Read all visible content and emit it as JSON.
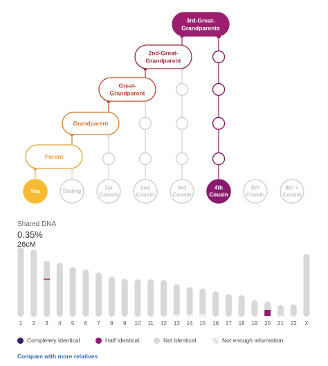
{
  "tree": {
    "ancestors": [
      {
        "label": [
          "Parent"
        ],
        "color": "#e8a33a"
      },
      {
        "label": [
          "Grandparent"
        ],
        "color": "#d97a2c"
      },
      {
        "label": [
          "Great-",
          "Grandparent"
        ],
        "color": "#c1462d"
      },
      {
        "label": [
          "2nd-Great-",
          "Grandparent"
        ],
        "color": "#9a2b3c"
      },
      {
        "label": [
          "3rd-Great-",
          "Grandparents"
        ],
        "color": "#9b1f6e"
      }
    ],
    "relatives": [
      {
        "label": [
          "You"
        ],
        "state": "you"
      },
      {
        "label": [
          "Sibling"
        ],
        "state": "inactive"
      },
      {
        "label": [
          "1st",
          "Cousin"
        ],
        "state": "inactive"
      },
      {
        "label": [
          "2nd",
          "Cousin"
        ],
        "state": "inactive"
      },
      {
        "label": [
          "3rd",
          "Cousin"
        ],
        "state": "inactive"
      },
      {
        "label": [
          "4th",
          "Cousin"
        ],
        "state": "selected"
      },
      {
        "label": [
          "5th",
          "Cousin"
        ],
        "state": "inactive"
      },
      {
        "label": [
          "6th +",
          "Cousin"
        ],
        "state": "inactive"
      }
    ],
    "colors": {
      "you": "#f6bb33",
      "selected": "#8a1a6d",
      "inactive": "#cfcfcf",
      "inactive_text": "#c2c2c2"
    }
  },
  "shared_dna": {
    "label": "Shared DNA",
    "percent": "0.35%",
    "cm": "26cM"
  },
  "chromosomes": {
    "labels": [
      "1",
      "2",
      "3",
      "4",
      "5",
      "6",
      "7",
      "8",
      "9",
      "10",
      "11",
      "12",
      "13",
      "14",
      "15",
      "16",
      "17",
      "18",
      "19",
      "20",
      "21",
      "22",
      "X"
    ],
    "relative_heights": [
      1.0,
      0.97,
      0.81,
      0.78,
      0.72,
      0.68,
      0.64,
      0.58,
      0.55,
      0.54,
      0.54,
      0.53,
      0.47,
      0.43,
      0.41,
      0.37,
      0.33,
      0.31,
      0.24,
      0.22,
      0.17,
      0.18,
      0.91
    ],
    "half_identical": [
      {
        "chromosome": "3",
        "from": 0.66,
        "to": 0.68
      },
      {
        "chromosome": "20",
        "from": 0.05,
        "to": 0.45
      }
    ],
    "not_enough_info": [
      {
        "chromosome": "13",
        "from": 0.0,
        "to": 0.07
      },
      {
        "chromosome": "14",
        "from": 0.0,
        "to": 0.08
      },
      {
        "chromosome": "15",
        "from": 0.0,
        "to": 0.09
      },
      {
        "chromosome": "20",
        "from": 0.0,
        "to": 0.12
      },
      {
        "chromosome": "21",
        "from": 0.0,
        "to": 0.12
      },
      {
        "chromosome": "22",
        "from": 0.0,
        "to": 0.12
      }
    ],
    "colors": {
      "bar": "#d8d8d8",
      "half": "#8e1a73",
      "complete": "#3a1e6e"
    }
  },
  "legend": {
    "completely_identical": "Completely Identical",
    "half_identical": "Half Identical",
    "not_identical": "Not Identical",
    "not_enough": "Not enough information"
  },
  "compare_link": "Compare with more relatives"
}
